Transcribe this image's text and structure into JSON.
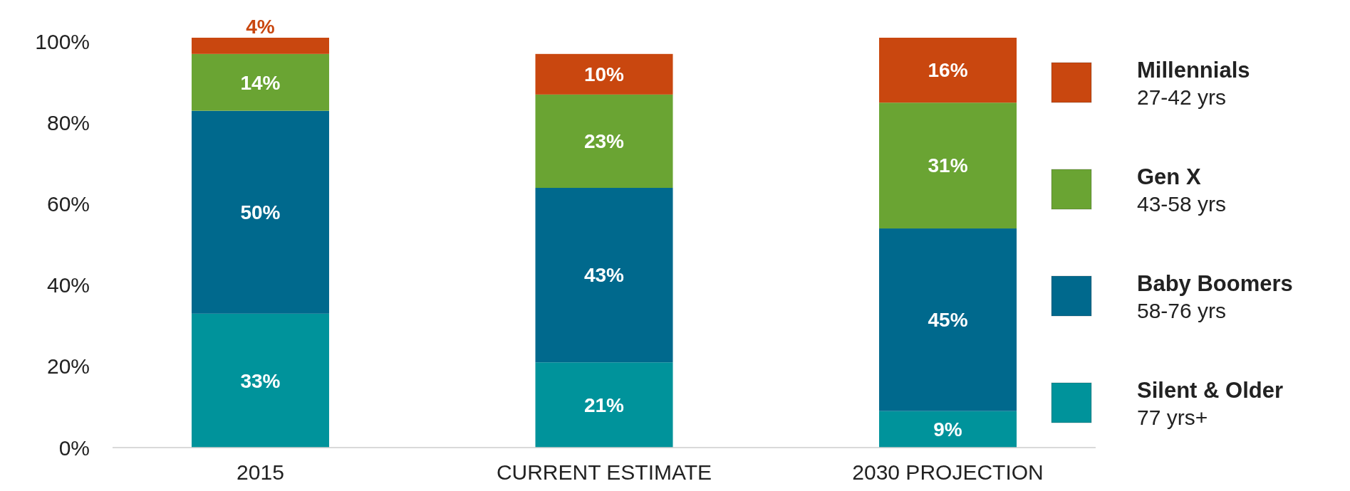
{
  "chart_data": {
    "type": "bar",
    "stacked": true,
    "categories": [
      "2015",
      "CURRENT ESTIMATE",
      "2030 PROJECTION"
    ],
    "series": [
      {
        "name": "Silent & Older\n77 yrs+",
        "color": "#00939b",
        "values": [
          33,
          21,
          9
        ],
        "value_labels": [
          "33%",
          "21%",
          "9%"
        ]
      },
      {
        "name": "Baby Boomers\n58-76 yrs",
        "color": "#00698d",
        "values": [
          50,
          43,
          45
        ],
        "value_labels": [
          "50%",
          "43%",
          "45%"
        ]
      },
      {
        "name": "Gen X\n43-58 yrs",
        "color": "#6aa433",
        "values": [
          14,
          23,
          31
        ],
        "value_labels": [
          "14%",
          "23%",
          "31%"
        ]
      },
      {
        "name": "Millennials\n27-42 yrs",
        "color": "#c9470f",
        "values": [
          4,
          10,
          16
        ],
        "value_labels": [
          "4%",
          "10%",
          "16%"
        ]
      }
    ],
    "ylim": [
      0,
      101
    ],
    "yticks": [
      {
        "value": 0,
        "label": "0%"
      },
      {
        "value": 20,
        "label": "20%"
      },
      {
        "value": 40,
        "label": "40%"
      },
      {
        "value": 60,
        "label": "60%"
      },
      {
        "value": 80,
        "label": "80%"
      },
      {
        "value": 100,
        "label": "100%"
      }
    ],
    "legend": "right",
    "grid": false
  }
}
